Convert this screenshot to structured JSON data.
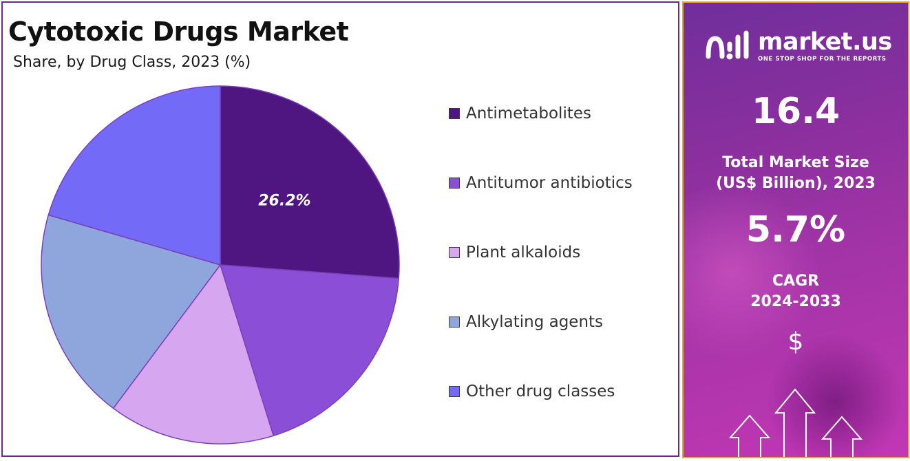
{
  "chart_data": {
    "type": "pie",
    "title": "Cytotoxic Drugs Market",
    "subtitle": "Share, by Drug Class, 2023 (%)",
    "categories": [
      "Antimetabolites",
      "Antitumor antibiotics",
      "Plant alkaloids",
      "Alkylating agents",
      "Other drug classes"
    ],
    "values": [
      26.2,
      19.0,
      15.0,
      19.3,
      20.5
    ],
    "data_labels": [
      "26.2%",
      "",
      "",
      "",
      ""
    ],
    "colors": [
      "#4f1682",
      "#8a4fd6",
      "#d6a6f0",
      "#8fa6dc",
      "#736af7"
    ],
    "legend_position": "right",
    "start_angle": "12 o'clock",
    "direction": "clockwise"
  },
  "side": {
    "brand_name": "market.us",
    "brand_tag": "ONE STOP SHOP FOR THE REPORTS",
    "market_size_value": "16.4",
    "market_size_label_1": "Total Market Size",
    "market_size_label_2": "(US$ Billion), 2023",
    "cagr_value": "5.7%",
    "cagr_label_1": "CAGR",
    "cagr_label_2": "2024-2033",
    "currency_symbol": "$"
  },
  "icons": {
    "brand_logo": "market-us-logo-icon",
    "growth_arrows": "up-arrows-icon"
  }
}
